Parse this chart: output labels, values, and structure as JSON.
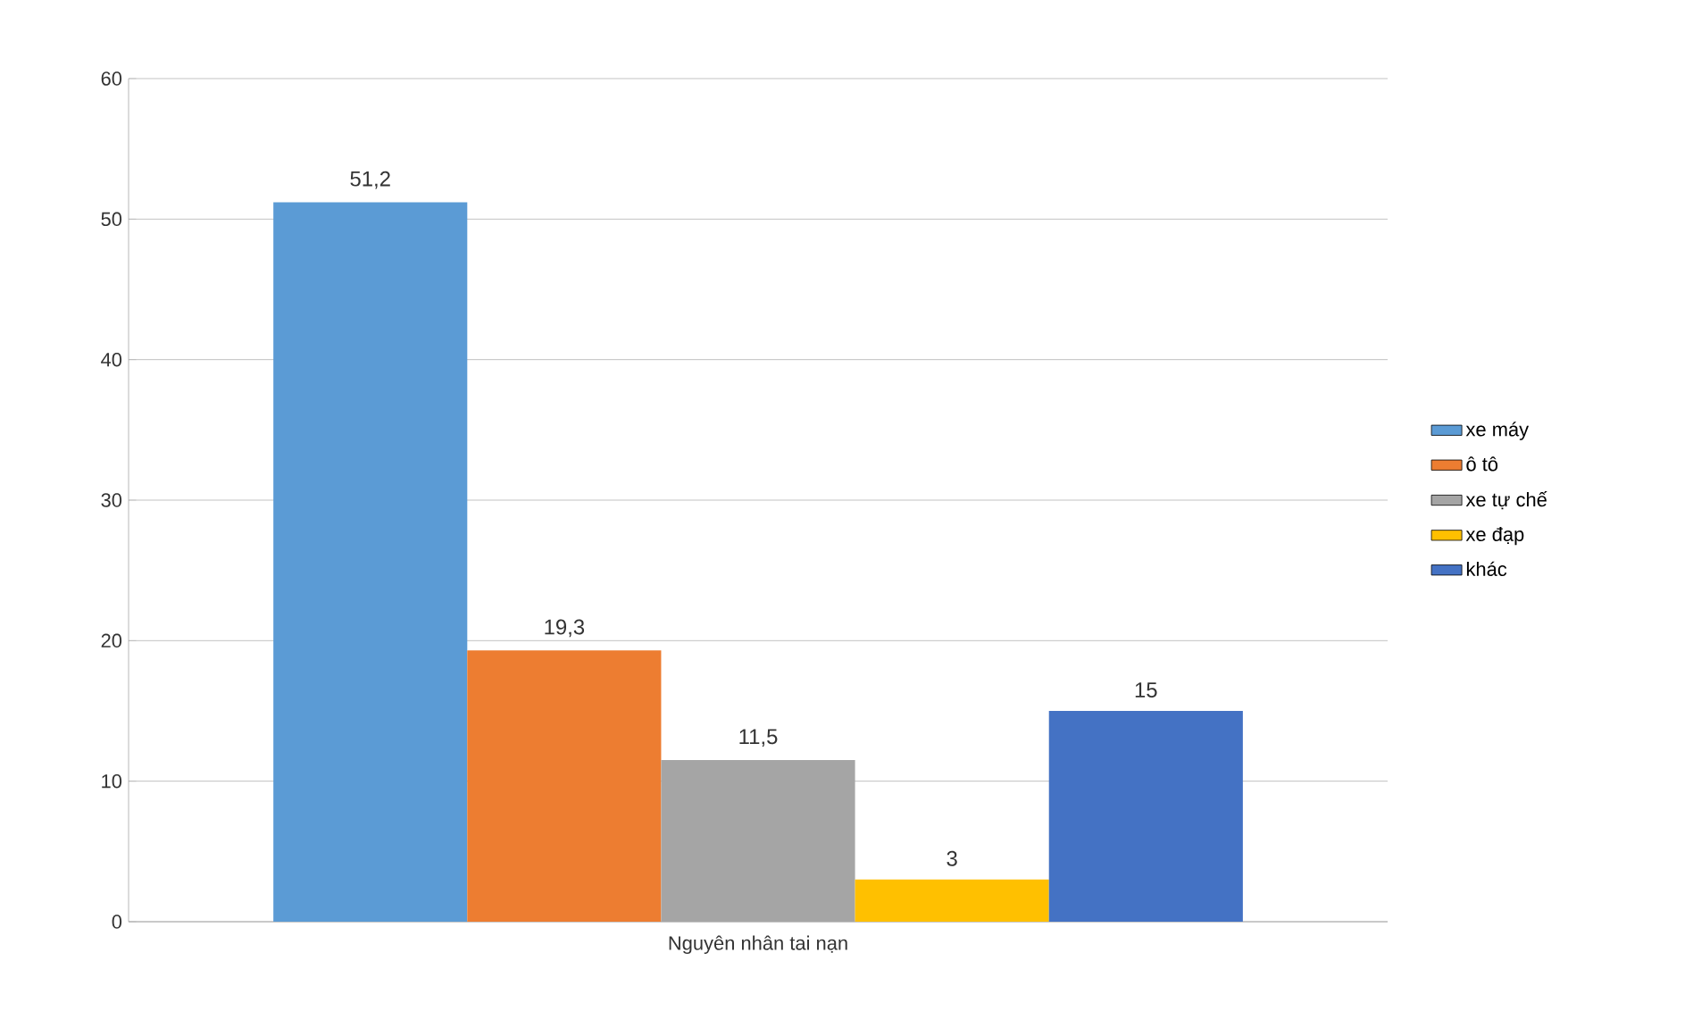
{
  "chart_data": {
    "type": "bar",
    "categories": [
      "Nguyên nhân tai nạn"
    ],
    "series": [
      {
        "name": "xe máy",
        "color": "#5b9bd5",
        "values": [
          51.2
        ],
        "value_labels": [
          "51,2"
        ]
      },
      {
        "name": "ô tô",
        "color": "#ed7d31",
        "values": [
          19.3
        ],
        "value_labels": [
          "19,3"
        ]
      },
      {
        "name": "xe tự chế",
        "color": "#a5a5a5",
        "values": [
          11.5
        ],
        "value_labels": [
          "11,5"
        ]
      },
      {
        "name": "xe đạp",
        "color": "#ffc000",
        "values": [
          3
        ],
        "value_labels": [
          "3"
        ]
      },
      {
        "name": "khác",
        "color": "#4472c4",
        "values": [
          15
        ],
        "value_labels": [
          "15"
        ]
      }
    ],
    "ylim": [
      0,
      60
    ],
    "yticks": [
      0,
      10,
      20,
      30,
      40,
      50,
      60
    ],
    "grid": "y",
    "legend": "right"
  }
}
